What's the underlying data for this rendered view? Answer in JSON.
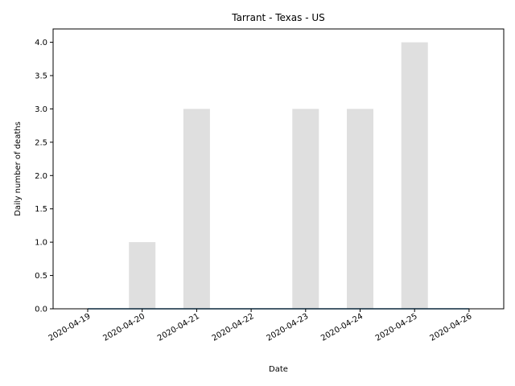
{
  "chart_data": {
    "type": "bar",
    "title": "Tarrant - Texas - US",
    "xlabel": "Date",
    "ylabel": "Daily number of deaths",
    "x_ticks": [
      "2020-04-19",
      "2020-04-20",
      "2020-04-21",
      "2020-04-22",
      "2020-04-23",
      "2020-04-24",
      "2020-04-25",
      "2020-04-26"
    ],
    "categories": [
      "2020-04-19",
      "2020-04-20",
      "2020-04-21",
      "2020-04-22",
      "2020-04-23",
      "2020-04-24",
      "2020-04-25",
      "2020-04-26"
    ],
    "values": [
      0,
      1,
      3,
      0,
      3,
      3,
      4,
      0
    ],
    "line_values": [
      0,
      0,
      0,
      0,
      0,
      0,
      0,
      0
    ],
    "y_ticks": [
      "0.0",
      "0.5",
      "1.0",
      "1.5",
      "2.0",
      "2.5",
      "3.0",
      "3.5",
      "4.0"
    ],
    "ylim": [
      0,
      4.2
    ],
    "bar_color": "#dfdfdf",
    "line_color": "#1f77b4",
    "grid": false,
    "legend": "none"
  }
}
